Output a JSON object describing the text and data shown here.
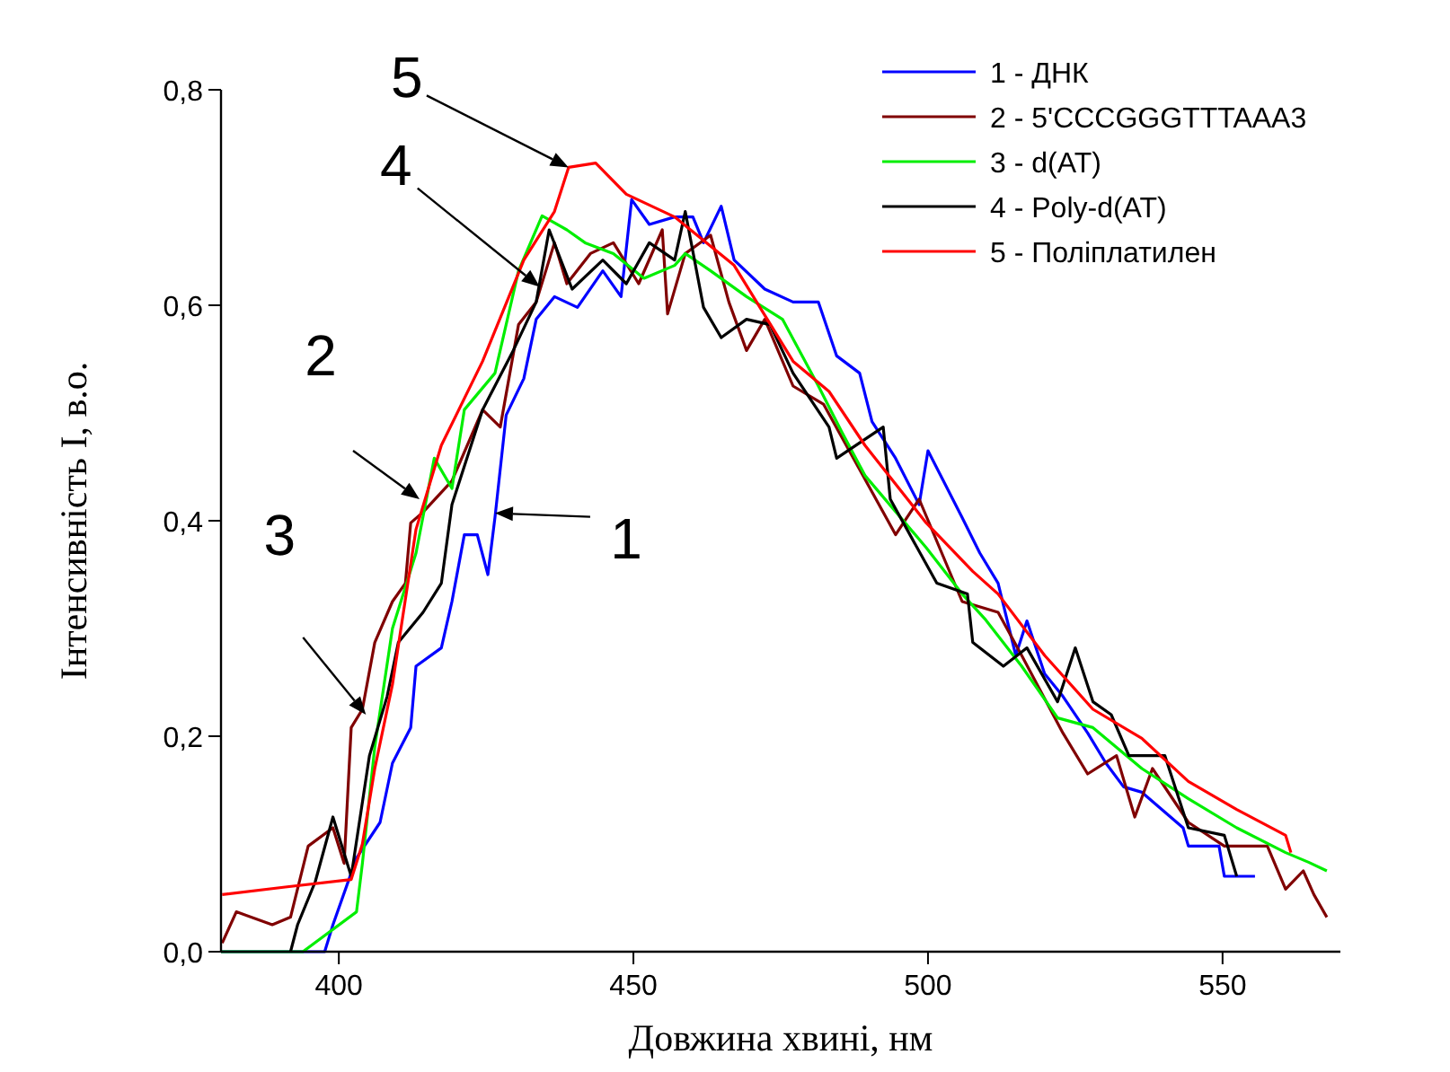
{
  "chart_data": {
    "type": "line",
    "xlabel": "Довжина хвині, нм",
    "ylabel": "Інтенсивність І, в.о.",
    "xlim": [
      380,
      570
    ],
    "xticks": [
      400,
      450,
      500,
      550
    ],
    "ylim": [
      0,
      0.8
    ],
    "yticks": [
      {
        "value": 0,
        "label": "0,0"
      },
      {
        "value": 0.2,
        "label": "0,2"
      },
      {
        "value": 0.4,
        "label": "0,4"
      },
      {
        "value": 0.6,
        "label": "0,6"
      },
      {
        "value": 0.8,
        "label": "0,8"
      }
    ],
    "grid": false,
    "legend": "top right",
    "line_style": "solid",
    "marker": "none",
    "annotations": [
      {
        "text": "5",
        "x": 439,
        "y": 0.728
      },
      {
        "text": "4",
        "x": 434.1,
        "y": 0.617
      },
      {
        "text": "2",
        "x": 413.7,
        "y": 0.42
      },
      {
        "text": "1",
        "x": 426.5,
        "y": 0.407
      },
      {
        "text": "3",
        "x": 404.6,
        "y": 0.22
      }
    ],
    "series": [
      {
        "name": "1 - ДНК",
        "color": "#0000ff",
        "x": [
          380,
          397.6,
          399,
          403,
          407,
          409.1,
          412.2,
          413.1,
          417.4,
          419.2,
          421.3,
          423.5,
          425.3,
          426.5,
          428.4,
          431.4,
          433.5,
          436.6,
          440.5,
          444.8,
          447.9,
          449.7,
          452.7,
          457,
          460.1,
          461.9,
          464.9,
          467.1,
          472.3,
          477.1,
          481.4,
          484.5,
          488.4,
          490.5,
          494.5,
          498.5,
          500,
          505.8,
          508.8,
          511.9,
          514.9,
          516.8,
          519.8,
          522.9,
          527.1,
          530.2,
          533.2,
          536.3,
          543.3,
          544.2,
          549.4,
          550.3,
          555.5
        ],
        "values": [
          0,
          0,
          0.025,
          0.087,
          0.12,
          0.175,
          0.208,
          0.265,
          0.282,
          0.325,
          0.387,
          0.387,
          0.35,
          0.403,
          0.498,
          0.532,
          0.587,
          0.608,
          0.598,
          0.632,
          0.608,
          0.698,
          0.675,
          0.682,
          0.682,
          0.658,
          0.692,
          0.642,
          0.615,
          0.603,
          0.603,
          0.553,
          0.537,
          0.492,
          0.458,
          0.415,
          0.465,
          0.403,
          0.37,
          0.342,
          0.275,
          0.307,
          0.258,
          0.237,
          0.203,
          0.175,
          0.153,
          0.148,
          0.115,
          0.098,
          0.098,
          0.07,
          0.07
        ]
      },
      {
        "name": "2 - 5'CCCGGGTTTAAA3",
        "color": "#800000",
        "x": [
          380.2,
          382.6,
          388.7,
          391.8,
          394.8,
          399,
          400.9,
          402.1,
          404,
          406.1,
          409.1,
          411.3,
          412.2,
          414.3,
          419.2,
          424.4,
          427.4,
          430.5,
          433.5,
          436.6,
          438.7,
          442.7,
          446.6,
          450.9,
          454.9,
          455.8,
          458.8,
          463.1,
          466.2,
          469.2,
          472.3,
          477.1,
          482.3,
          494.5,
          498.5,
          505.8,
          511.9,
          515.9,
          522.9,
          527.1,
          532,
          535.1,
          538.1,
          544.2,
          550.3,
          557.6,
          560.7,
          563.7,
          565.5,
          567.7
        ],
        "values": [
          0.008,
          0.037,
          0.025,
          0.032,
          0.098,
          0.115,
          0.082,
          0.208,
          0.225,
          0.287,
          0.325,
          0.342,
          0.398,
          0.408,
          0.437,
          0.503,
          0.487,
          0.582,
          0.603,
          0.658,
          0.62,
          0.648,
          0.658,
          0.62,
          0.67,
          0.592,
          0.648,
          0.665,
          0.603,
          0.558,
          0.587,
          0.525,
          0.508,
          0.387,
          0.42,
          0.325,
          0.315,
          0.275,
          0.203,
          0.165,
          0.182,
          0.125,
          0.17,
          0.12,
          0.098,
          0.098,
          0.058,
          0.075,
          0.053,
          0.032
        ]
      },
      {
        "name": "3 - d(AT)",
        "color": "#00ee00",
        "x": [
          380,
          393.9,
          403,
          404,
          406.1,
          409.1,
          413.1,
          416.2,
          419.2,
          421.3,
          426.5,
          430.5,
          434.5,
          438.7,
          441.8,
          446.6,
          451.8,
          457,
          458.8,
          463.1,
          469.2,
          475.3,
          481.4,
          485.4,
          489.3,
          499.7,
          505.8,
          509.8,
          515.9,
          522,
          528,
          536.3,
          544.2,
          552.4,
          560.7,
          564.6,
          567.7
        ],
        "values": [
          0,
          0,
          0.037,
          0.082,
          0.19,
          0.3,
          0.37,
          0.458,
          0.43,
          0.503,
          0.537,
          0.632,
          0.683,
          0.67,
          0.658,
          0.648,
          0.625,
          0.637,
          0.648,
          0.632,
          0.608,
          0.587,
          0.525,
          0.482,
          0.442,
          0.375,
          0.332,
          0.308,
          0.265,
          0.217,
          0.208,
          0.17,
          0.142,
          0.115,
          0.092,
          0.083,
          0.075
        ]
      },
      {
        "name": "4 - Poly-d(AT)",
        "color": "#000000",
        "x": [
          391.8,
          393,
          396,
          399,
          402.1,
          405.2,
          408.2,
          410.1,
          414.3,
          417.4,
          419.2,
          424.4,
          429.6,
          433.5,
          435.7,
          439.6,
          444.8,
          448.8,
          452.7,
          457,
          458.8,
          461.9,
          464.9,
          469.2,
          473.2,
          477.1,
          483.2,
          484.5,
          492.4,
          493.6,
          501.5,
          506.7,
          507.6,
          512.8,
          516.8,
          522,
          525,
          528,
          531.1,
          534.1,
          540.2,
          544.2,
          550.3,
          552.4
        ],
        "values": [
          0,
          0.025,
          0.065,
          0.125,
          0.07,
          0.182,
          0.237,
          0.287,
          0.315,
          0.342,
          0.415,
          0.503,
          0.558,
          0.603,
          0.67,
          0.615,
          0.642,
          0.62,
          0.658,
          0.642,
          0.687,
          0.598,
          0.57,
          0.587,
          0.582,
          0.537,
          0.487,
          0.458,
          0.487,
          0.42,
          0.342,
          0.332,
          0.287,
          0.265,
          0.282,
          0.232,
          0.282,
          0.232,
          0.22,
          0.182,
          0.182,
          0.115,
          0.108,
          0.07
        ]
      },
      {
        "name": "5 - Поліплатилен",
        "color": "#ff0000",
        "x": [
          380.2,
          390.9,
          402.1,
          404,
          406.1,
          409.1,
          413.1,
          417.4,
          424.4,
          431.4,
          436.6,
          439,
          443.6,
          448.8,
          457,
          467.1,
          477.1,
          483.2,
          489.3,
          499.7,
          507.6,
          511.9,
          519.8,
          528,
          536.3,
          544.2,
          552.4,
          560.7,
          561.6
        ],
        "values": [
          0.053,
          0.06,
          0.067,
          0.1,
          0.17,
          0.248,
          0.392,
          0.47,
          0.548,
          0.642,
          0.687,
          0.728,
          0.732,
          0.703,
          0.682,
          0.637,
          0.548,
          0.52,
          0.47,
          0.398,
          0.353,
          0.332,
          0.275,
          0.225,
          0.198,
          0.158,
          0.132,
          0.108,
          0.092
        ]
      }
    ]
  }
}
